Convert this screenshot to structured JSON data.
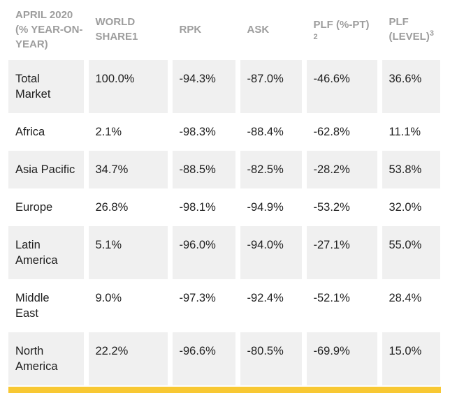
{
  "colors": {
    "accent": "#F8C833",
    "row_alt": "#F0F0F0",
    "header_text": "#9D9D9D",
    "body_text": "#1F1F1F"
  },
  "table": {
    "header": {
      "col1": {
        "lines": [
          "APRIL 2020",
          "(% YEAR-ON-",
          "YEAR)"
        ]
      },
      "col2": {
        "lines": [
          "WORLD",
          "SHARE1"
        ]
      },
      "col3": {
        "label": "RPK"
      },
      "col4": {
        "label": "ASK"
      },
      "col5": {
        "line1": "PLF (%-PT)",
        "sup": "2"
      },
      "col6": {
        "line1": "PLF",
        "line2": "(LEVEL)",
        "sup": "3"
      }
    },
    "rows": [
      {
        "label": "Total Market",
        "label_lines": [
          "Total",
          "Market"
        ],
        "world_share": "100.0%",
        "rpk": "-94.3%",
        "ask": "-87.0%",
        "plf_pt": "-46.6%",
        "plf_level": "36.6%"
      },
      {
        "label": "Africa",
        "label_lines": [
          "Africa"
        ],
        "world_share": "2.1%",
        "rpk": "-98.3%",
        "ask": "-88.4%",
        "plf_pt": "-62.8%",
        "plf_level": "11.1%"
      },
      {
        "label": "Asia Pacific",
        "label_lines": [
          "Asia Pacific"
        ],
        "world_share": "34.7%",
        "rpk": "-88.5%",
        "ask": "-82.5%",
        "plf_pt": "-28.2%",
        "plf_level": "53.8%"
      },
      {
        "label": "Europe",
        "label_lines": [
          "Europe"
        ],
        "world_share": "26.8%",
        "rpk": "-98.1%",
        "ask": "-94.9%",
        "plf_pt": "-53.2%",
        "plf_level": "32.0%"
      },
      {
        "label": "Latin America",
        "label_lines": [
          "Latin",
          "America"
        ],
        "world_share": "5.1%",
        "rpk": "-96.0%",
        "ask": "-94.0%",
        "plf_pt": "-27.1%",
        "plf_level": "55.0%"
      },
      {
        "label": "Middle East",
        "label_lines": [
          "Middle",
          "East"
        ],
        "world_share": "9.0%",
        "rpk": "-97.3%",
        "ask": "-92.4%",
        "plf_pt": "-52.1%",
        "plf_level": "28.4%"
      },
      {
        "label": "North America",
        "label_lines": [
          "North",
          "America"
        ],
        "world_share": "22.2%",
        "rpk": "-96.6%",
        "ask": "-80.5%",
        "plf_pt": "-69.9%",
        "plf_level": "15.0%"
      }
    ]
  },
  "chart_data": {
    "type": "table",
    "title": "April 2020 (% year-on-year)",
    "columns": [
      "April 2020 (% year-on-year)",
      "World share1",
      "RPK",
      "ASK",
      "PLF (%-pt)2",
      "PLF (level)3"
    ],
    "rows": [
      [
        "Total Market",
        "100.0%",
        "-94.3%",
        "-87.0%",
        "-46.6%",
        "36.6%"
      ],
      [
        "Africa",
        "2.1%",
        "-98.3%",
        "-88.4%",
        "-62.8%",
        "11.1%"
      ],
      [
        "Asia Pacific",
        "34.7%",
        "-88.5%",
        "-82.5%",
        "-28.2%",
        "53.8%"
      ],
      [
        "Europe",
        "26.8%",
        "-98.1%",
        "-94.9%",
        "-53.2%",
        "32.0%"
      ],
      [
        "Latin America",
        "5.1%",
        "-96.0%",
        "-94.0%",
        "-27.1%",
        "55.0%"
      ],
      [
        "Middle East",
        "9.0%",
        "-97.3%",
        "-92.4%",
        "-52.1%",
        "28.4%"
      ],
      [
        "North America",
        "22.2%",
        "-96.6%",
        "-80.5%",
        "-69.9%",
        "15.0%"
      ]
    ]
  }
}
